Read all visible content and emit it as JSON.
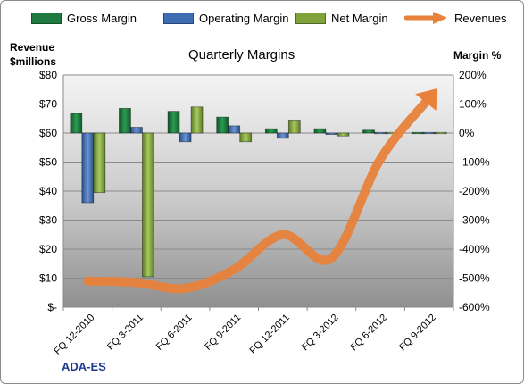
{
  "legend": [
    {
      "label": "Gross Margin",
      "color": "#1e7a3e"
    },
    {
      "label": "Operating Margin",
      "color": "#3f6db2"
    },
    {
      "label": "Net Margin",
      "color": "#7fa33a"
    },
    {
      "label": "Revenues",
      "color": "#e8823a"
    }
  ],
  "labels": {
    "left_axis_title": [
      "Revenue",
      "$millions"
    ],
    "right_axis_title": "Margin %",
    "chart_title": "Quarterly Margins",
    "brand": "ADA-ES"
  },
  "chart_data": {
    "type": "bar",
    "title": "Quarterly Margins",
    "categories": [
      "FQ 12-2010",
      "FQ 3-2011",
      "FQ 6-2011",
      "FQ 9-2011",
      "FQ 12-2011",
      "FQ 3-2012",
      "FQ 6-2012",
      "FQ 9-2012"
    ],
    "series": [
      {
        "name": "Gross Margin",
        "axis": "right",
        "kind": "bar",
        "color": "#1e7a3e",
        "values": [
          68,
          85,
          75,
          55,
          15,
          15,
          10,
          2
        ]
      },
      {
        "name": "Operating Margin",
        "axis": "right",
        "kind": "bar",
        "color": "#3f6db2",
        "values": [
          -240,
          20,
          -30,
          25,
          -18,
          -5,
          0,
          -3
        ]
      },
      {
        "name": "Net Margin",
        "axis": "right",
        "kind": "bar",
        "color": "#7fa33a",
        "values": [
          -205,
          -495,
          90,
          -30,
          45,
          -10,
          0,
          -2
        ]
      },
      {
        "name": "Revenues",
        "axis": "left",
        "kind": "line",
        "color": "#e8823a",
        "values": [
          9,
          8.5,
          6.5,
          13,
          25,
          17,
          51,
          72
        ]
      }
    ],
    "left_axis": {
      "ylabel": "Revenue $millions",
      "ylim": [
        0,
        80
      ],
      "ticks": [
        "$-",
        "$10",
        "$20",
        "$30",
        "$40",
        "$50",
        "$60",
        "$70",
        "$80"
      ]
    },
    "right_axis": {
      "ylabel": "Margin %",
      "ylim": [
        -600,
        200
      ],
      "ticks": [
        "-600%",
        "-500%",
        "-400%",
        "-300%",
        "-200%",
        "-100%",
        "0%",
        "100%",
        "200%"
      ]
    },
    "legend_position": "top",
    "grid": true
  }
}
